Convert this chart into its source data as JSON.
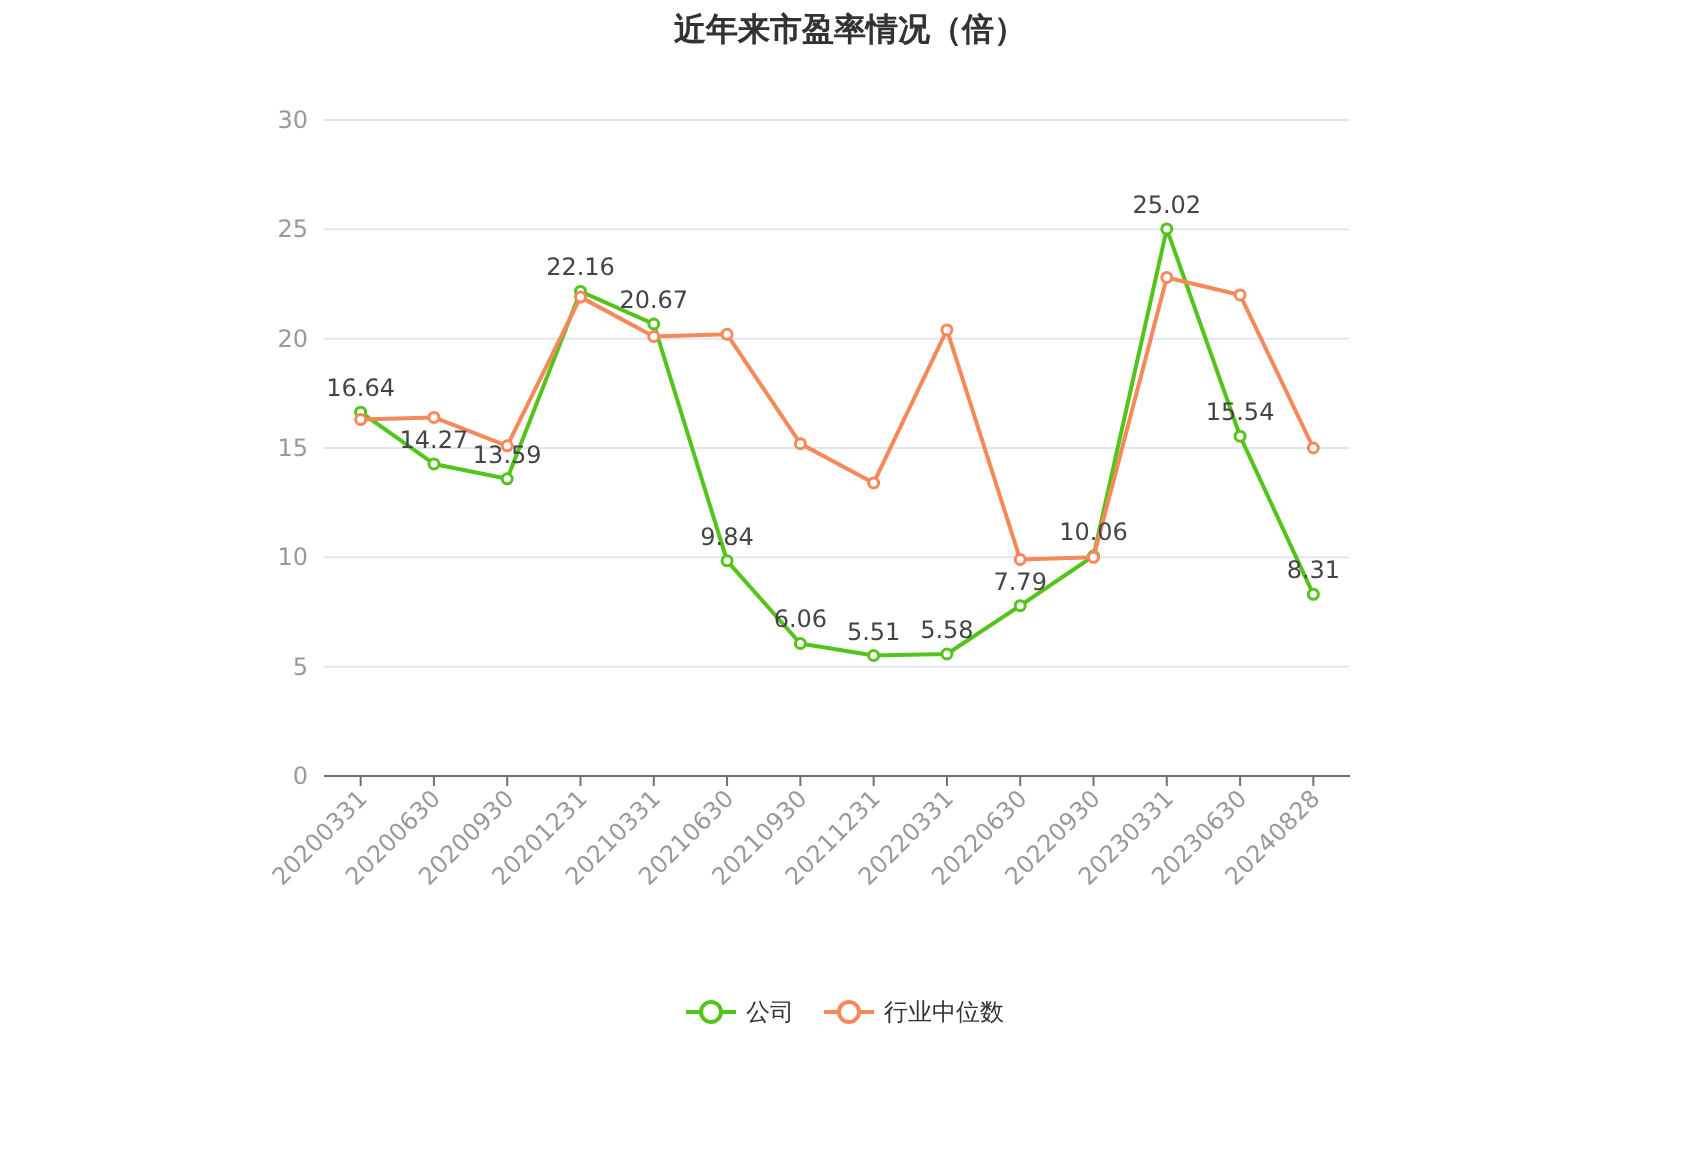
{
  "chart_data": {
    "type": "line",
    "title": "近年来市盈率情况（倍）",
    "categories": [
      "20200331",
      "20200630",
      "20200930",
      "20201231",
      "20210331",
      "20210630",
      "20210930",
      "20211231",
      "20220331",
      "20220630",
      "20220930",
      "20230331",
      "20230630",
      "20240828"
    ],
    "series": [
      {
        "name": "公司",
        "color": "#52c41a",
        "values": [
          16.64,
          14.27,
          13.59,
          22.16,
          20.67,
          9.84,
          6.06,
          5.51,
          5.58,
          7.79,
          10.06,
          25.02,
          15.54,
          8.31
        ],
        "value_labels": [
          "16.64",
          "14.27",
          "13.59",
          "22.16",
          "20.67",
          "9.84",
          "6.06",
          "5.51",
          "5.58",
          "7.79",
          "10.06",
          "25.02",
          "15.54",
          "8.31"
        ]
      },
      {
        "name": "行业中位数",
        "color": "#f5895a",
        "values": [
          16.3,
          16.4,
          15.1,
          21.9,
          20.1,
          20.2,
          15.2,
          13.4,
          20.4,
          9.9,
          10.0,
          22.8,
          22.0,
          15.0
        ]
      }
    ],
    "ylim": [
      0,
      30
    ],
    "yticks": [
      0,
      5,
      10,
      15,
      20,
      25,
      30
    ],
    "grid": "y",
    "legend": "bottom",
    "marker": "circle",
    "line_style": "solid"
  }
}
